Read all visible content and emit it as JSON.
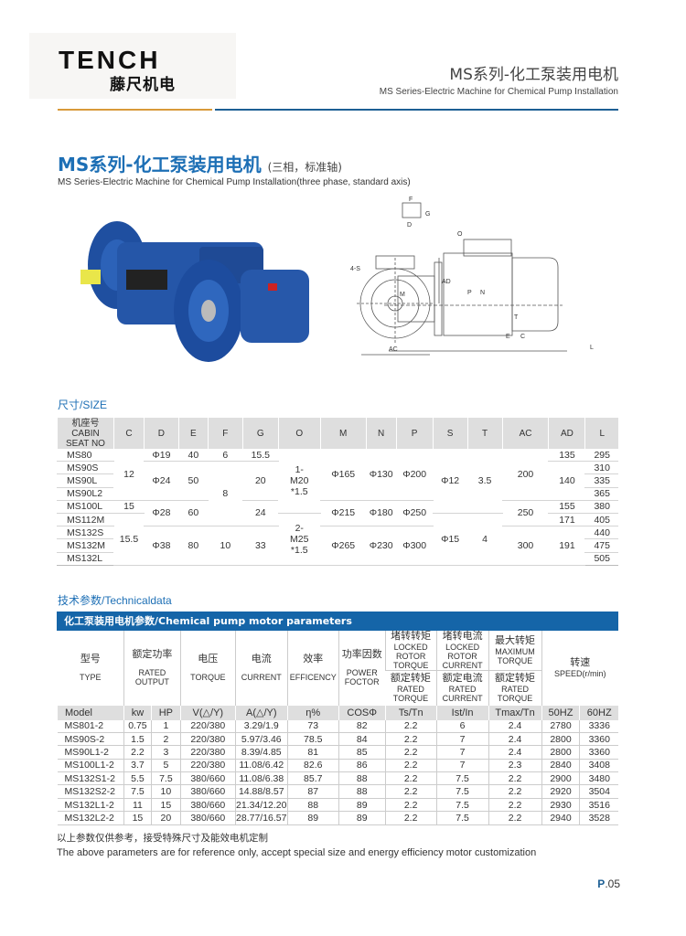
{
  "header": {
    "logo_en": "TENCH",
    "logo_cn": "藤尺机电",
    "title_cn": "MS系列-化工泵装用电机",
    "title_en": "MS Series-Electric Machine for Chemical Pump Installation"
  },
  "main": {
    "title": "MS系列-化工泵装用电机",
    "title_note": "(三相，标准轴)",
    "subtitle": "MS Series-Electric Machine for Chemical Pump Installation(three phase, standard axis)"
  },
  "drawing": {
    "labels": {
      "f": "F",
      "g": "G",
      "d": "D",
      "o": "O",
      "s": "4-S",
      "ad": "AD",
      "m": "M",
      "ac": "AC",
      "p": "P",
      "n": "N",
      "t": "T",
      "e": "E",
      "c": "C",
      "l": "L"
    }
  },
  "size": {
    "section_title": "尺寸/SIZE",
    "headers": [
      "机座号\nCABIN\nSEAT NO",
      "C",
      "D",
      "E",
      "F",
      "G",
      "O",
      "M",
      "N",
      "P",
      "S",
      "T",
      "AC",
      "AD",
      "L"
    ],
    "columns": [
      [
        {
          "v": "MS80",
          "rows": 1
        },
        {
          "v": "MS90S",
          "rows": 1
        },
        {
          "v": "MS90L",
          "rows": 1
        },
        {
          "v": "MS90L2",
          "rows": 1
        },
        {
          "v": "MS100L",
          "rows": 1
        },
        {
          "v": "MS112M",
          "rows": 1
        },
        {
          "v": "MS132S",
          "rows": 1
        },
        {
          "v": "MS132M",
          "rows": 1
        },
        {
          "v": "MS132L",
          "rows": 1
        }
      ],
      [
        {
          "v": "12",
          "rows": 4
        },
        {
          "v": "15",
          "rows": 1
        },
        {
          "v": "15.5",
          "rows": 4
        }
      ],
      [
        {
          "v": "Φ19",
          "rows": 1
        },
        {
          "v": "Φ24",
          "rows": 3
        },
        {
          "v": "Φ28",
          "rows": 2
        },
        {
          "v": "Φ38",
          "rows": 3
        }
      ],
      [
        {
          "v": "40",
          "rows": 1
        },
        {
          "v": "50",
          "rows": 3
        },
        {
          "v": "60",
          "rows": 2
        },
        {
          "v": "80",
          "rows": 3
        }
      ],
      [
        {
          "v": "6",
          "rows": 1
        },
        {
          "v": "8",
          "rows": 5
        },
        {
          "v": "10",
          "rows": 3
        }
      ],
      [
        {
          "v": "15.5",
          "rows": 1
        },
        {
          "v": "20",
          "rows": 3
        },
        {
          "v": "24",
          "rows": 2
        },
        {
          "v": "33",
          "rows": 3
        }
      ],
      [
        {
          "v": "1-\nM20\n*1.5",
          "rows": 5
        },
        {
          "v": "2-\nM25\n*1.5",
          "rows": 4
        }
      ],
      [
        {
          "v": "Φ165",
          "rows": 4
        },
        {
          "v": "Φ215",
          "rows": 2
        },
        {
          "v": "Φ265",
          "rows": 3
        }
      ],
      [
        {
          "v": "Φ130",
          "rows": 4
        },
        {
          "v": "Φ180",
          "rows": 2
        },
        {
          "v": "Φ230",
          "rows": 3
        }
      ],
      [
        {
          "v": "Φ200",
          "rows": 4
        },
        {
          "v": "Φ250",
          "rows": 2
        },
        {
          "v": "Φ300",
          "rows": 3
        }
      ],
      [
        {
          "v": "Φ12",
          "rows": 5
        },
        {
          "v": "Φ15",
          "rows": 4
        }
      ],
      [
        {
          "v": "3.5",
          "rows": 5
        },
        {
          "v": "4",
          "rows": 4
        }
      ],
      [
        {
          "v": "200",
          "rows": 4
        },
        {
          "v": "250",
          "rows": 2
        },
        {
          "v": "300",
          "rows": 3
        }
      ],
      [
        {
          "v": "135",
          "rows": 1
        },
        {
          "v": "140",
          "rows": 3
        },
        {
          "v": "155",
          "rows": 1
        },
        {
          "v": "171",
          "rows": 1
        },
        {
          "v": "191",
          "rows": 3
        }
      ],
      [
        {
          "v": "295",
          "rows": 1
        },
        {
          "v": "310",
          "rows": 1
        },
        {
          "v": "335",
          "rows": 1
        },
        {
          "v": "365",
          "rows": 1
        },
        {
          "v": "380",
          "rows": 1
        },
        {
          "v": "405",
          "rows": 1
        },
        {
          "v": "440",
          "rows": 1
        },
        {
          "v": "475",
          "rows": 1
        },
        {
          "v": "505",
          "rows": 1
        }
      ]
    ]
  },
  "tech": {
    "section_title": "技术参数/Technicaldata",
    "bar_title": "化工泵装用电机参数/Chemical pump motor parameters",
    "h": {
      "type_cn": "型号",
      "type_en": "TYPE",
      "out_cn": "额定功率",
      "out_en": "RATED\nOUTPUT",
      "volt_cn": "电压",
      "volt_en": "TORQUE",
      "cur_cn": "电流",
      "cur_en": "CURRENT",
      "eff_cn": "效率",
      "eff_en": "EFFICENCY",
      "pf_cn": "功率因数",
      "pf_en": "POWER\nFOCTOR",
      "lt_cn": "堵转转矩",
      "lt_en": "LOCKED\nROTOR\nTORQUE",
      "lc_cn": "堵转电流",
      "lc_en": "LOCKED\nROTOR\nCURRENT",
      "mt_cn": "最大转矩",
      "mt_en": "MAXIMUM\nTORQUE",
      "rt_cn": "额定转矩",
      "rt_en": "RATED\nTORQUE",
      "rc_cn": "额定电流",
      "rc_en": "RATED\nCURRENT",
      "rt2_cn": "额定转矩",
      "rt2_en": "RATED\nTORQUE",
      "sp_cn": "转速",
      "sp_en": "SPEED(r/min)"
    },
    "units": [
      "Model",
      "kw",
      "HP",
      "V(△/Y)",
      "A(△/Y)",
      "η%",
      "COSΦ",
      "Ts/Tn",
      "Ist/In",
      "Tmax/Tn",
      "50HZ",
      "60HZ"
    ],
    "rows": [
      [
        "MS801-2",
        "0.75",
        "1",
        "220/380",
        "3.29/1.9",
        "73",
        "82",
        "2.2",
        "6",
        "2.4",
        "2780",
        "3336"
      ],
      [
        "MS90S-2",
        "1.5",
        "2",
        "220/380",
        "5.97/3.46",
        "78.5",
        "84",
        "2.2",
        "7",
        "2.4",
        "2800",
        "3360"
      ],
      [
        "MS90L1-2",
        "2.2",
        "3",
        "220/380",
        "8.39/4.85",
        "81",
        "85",
        "2.2",
        "7",
        "2.4",
        "2800",
        "3360"
      ],
      [
        "MS100L1-2",
        "3.7",
        "5",
        "220/380",
        "11.08/6.42",
        "82.6",
        "86",
        "2.2",
        "7",
        "2.3",
        "2840",
        "3408"
      ],
      [
        "MS132S1-2",
        "5.5",
        "7.5",
        "380/660",
        "11.08/6.38",
        "85.7",
        "88",
        "2.2",
        "7.5",
        "2.2",
        "2900",
        "3480"
      ],
      [
        "MS132S2-2",
        "7.5",
        "10",
        "380/660",
        "14.88/8.57",
        "87",
        "88",
        "2.2",
        "7.5",
        "2.2",
        "2920",
        "3504"
      ],
      [
        "MS132L1-2",
        "11",
        "15",
        "380/660",
        "21.34/12.20",
        "88",
        "89",
        "2.2",
        "7.5",
        "2.2",
        "2930",
        "3516"
      ],
      [
        "MS132L2-2",
        "15",
        "20",
        "380/660",
        "28.77/16.57",
        "89",
        "89",
        "2.2",
        "7.5",
        "2.2",
        "2940",
        "3528"
      ]
    ]
  },
  "footer": {
    "note_cn": "以上参数仅供参考，接受特殊尺寸及能效电机定制",
    "note_en": "The above parameters are for reference only, accept special size and energy efficiency motor customization",
    "page_prefix": "P",
    "page_num": ".05"
  }
}
